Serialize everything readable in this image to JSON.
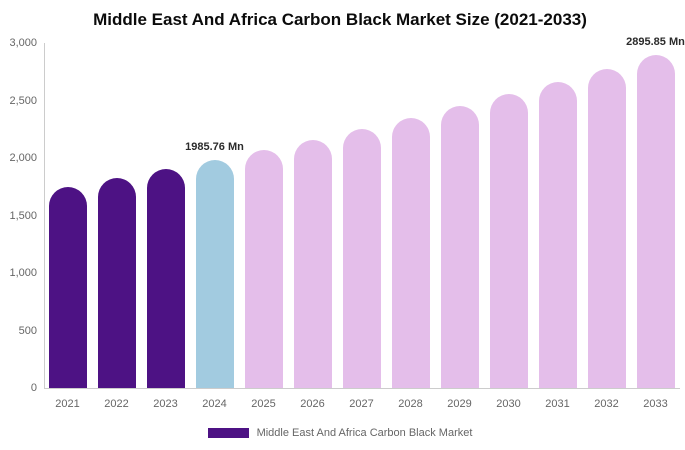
{
  "title": "Middle East And Africa Carbon Black Market Size (2021-2033)",
  "legend": {
    "label": "Middle East And Africa Carbon Black Market",
    "swatch_color": "#4D1284"
  },
  "colors": {
    "historical": "#4D1284",
    "highlight": "#A2CBE0",
    "forecast": "#E4BEEA",
    "axis_line": "#CCCCCC",
    "tick_text": "#666666",
    "data_label_text": "#2B2B2B",
    "title_text": "#0B0B0B"
  },
  "chart_data": {
    "type": "bar",
    "title": "Middle East And Africa Carbon Black Market Size (2021-2033)",
    "series_name": "Middle East And Africa Carbon Black Market",
    "unit": "Mn",
    "categories": [
      "2021",
      "2022",
      "2023",
      "2024",
      "2025",
      "2026",
      "2027",
      "2028",
      "2029",
      "2030",
      "2031",
      "2032",
      "2033"
    ],
    "values": [
      1750.4,
      1826.2,
      1904.4,
      1985.76,
      2070.6,
      2159.1,
      2251.5,
      2347.8,
      2448.2,
      2552.9,
      2662.1,
      2776.1,
      2895.85
    ],
    "bar_groups": [
      "historical",
      "historical",
      "historical",
      "highlight",
      "forecast",
      "forecast",
      "forecast",
      "forecast",
      "forecast",
      "forecast",
      "forecast",
      "forecast",
      "forecast"
    ],
    "data_labels": [
      null,
      null,
      null,
      "1985.76 Mn",
      null,
      null,
      null,
      null,
      null,
      null,
      null,
      null,
      "2895.85 Mn"
    ],
    "ylim": [
      0,
      3000
    ],
    "ytick_labels": [
      "3,000",
      "2,500",
      "2,000",
      "1,500",
      "1,000",
      "500",
      "0"
    ],
    "grid": false,
    "legend_position": "bottom"
  }
}
